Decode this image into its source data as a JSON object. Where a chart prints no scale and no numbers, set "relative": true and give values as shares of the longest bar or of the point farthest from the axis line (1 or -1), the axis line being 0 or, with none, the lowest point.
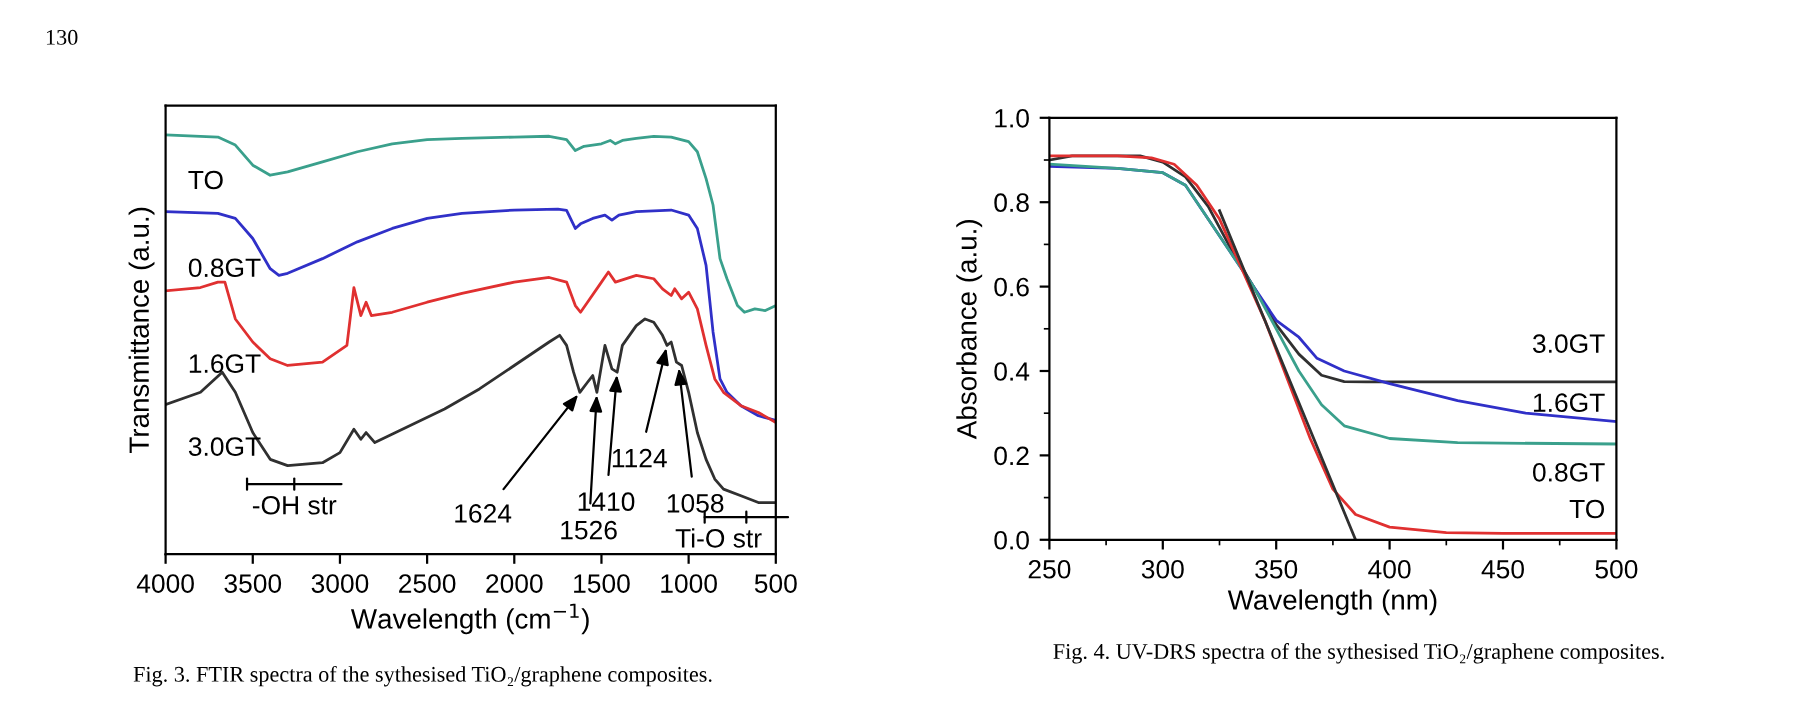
{
  "chart_data": [
    {
      "type": "line",
      "relative": true,
      "tick_labels": "x",
      "xlabel": "Wavelength (cm$^{−1}$)",
      "ylabel": "Transmittance (a.u.)",
      "xlim": [
        4000,
        500
      ],
      "xticks": [
        4000,
        3500,
        3000,
        2500,
        2000,
        1500,
        1000,
        500
      ],
      "grid": false,
      "legend": false,
      "series": [
        {
          "name": "TO",
          "color": "#3aa08c",
          "x": [
            4000,
            3700,
            3600,
            3500,
            3400,
            3300,
            3100,
            2900,
            2700,
            2500,
            2300,
            2000,
            1800,
            1700,
            1650,
            1600,
            1500,
            1450,
            1420,
            1380,
            1300,
            1200,
            1100,
            1000,
            950,
            900,
            860,
            820,
            780,
            720,
            680,
            620,
            560,
            500
          ],
          "values": [
            1.0,
            0.995,
            0.976,
            0.928,
            0.904,
            0.912,
            0.936,
            0.96,
            0.979,
            0.989,
            0.992,
            0.995,
            0.997,
            0.989,
            0.963,
            0.973,
            0.979,
            0.987,
            0.979,
            0.987,
            0.992,
            0.997,
            0.995,
            0.984,
            0.96,
            0.896,
            0.833,
            0.705,
            0.657,
            0.593,
            0.577,
            0.585,
            0.581,
            0.593
          ]
        },
        {
          "name": "0.8GT",
          "color": "#3030c8",
          "x": [
            4000,
            3700,
            3600,
            3500,
            3400,
            3350,
            3300,
            3100,
            2900,
            2700,
            2500,
            2300,
            2000,
            1750,
            1700,
            1650,
            1620,
            1550,
            1480,
            1440,
            1400,
            1300,
            1100,
            1000,
            950,
            900,
            860,
            820,
            780,
            700,
            600,
            500
          ],
          "values": [
            0.817,
            0.813,
            0.801,
            0.753,
            0.681,
            0.665,
            0.67,
            0.705,
            0.745,
            0.777,
            0.801,
            0.813,
            0.821,
            0.823,
            0.82,
            0.777,
            0.788,
            0.801,
            0.809,
            0.797,
            0.809,
            0.817,
            0.821,
            0.809,
            0.777,
            0.689,
            0.53,
            0.418,
            0.386,
            0.354,
            0.33,
            0.319
          ]
        },
        {
          "name": "1.6GT",
          "color": "#e03030",
          "x": [
            4000,
            3800,
            3700,
            3660,
            3600,
            3500,
            3400,
            3300,
            3100,
            2960,
            2920,
            2880,
            2850,
            2820,
            2700,
            2500,
            2300,
            2000,
            1800,
            1700,
            1650,
            1620,
            1580,
            1500,
            1460,
            1420,
            1300,
            1200,
            1150,
            1100,
            1080,
            1040,
            1000,
            950,
            900,
            850,
            800,
            700,
            600,
            500
          ],
          "values": [
            0.628,
            0.636,
            0.649,
            0.649,
            0.561,
            0.506,
            0.466,
            0.45,
            0.458,
            0.498,
            0.636,
            0.569,
            0.601,
            0.569,
            0.577,
            0.601,
            0.622,
            0.649,
            0.66,
            0.649,
            0.593,
            0.577,
            0.601,
            0.649,
            0.673,
            0.649,
            0.665,
            0.657,
            0.633,
            0.617,
            0.633,
            0.609,
            0.625,
            0.585,
            0.498,
            0.418,
            0.386,
            0.354,
            0.338,
            0.314
          ]
        },
        {
          "name": "3.0GT",
          "color": "#303030",
          "x": [
            4000,
            3800,
            3675,
            3600,
            3500,
            3400,
            3300,
            3100,
            3000,
            2920,
            2880,
            2850,
            2800,
            2600,
            2400,
            2200,
            2000,
            1800,
            1740,
            1700,
            1660,
            1624,
            1580,
            1550,
            1526,
            1480,
            1440,
            1410,
            1380,
            1300,
            1250,
            1200,
            1150,
            1124,
            1100,
            1070,
            1040,
            1000,
            950,
            900,
            850,
            800,
            700,
            600,
            500
          ],
          "values": [
            0.357,
            0.386,
            0.434,
            0.386,
            0.29,
            0.226,
            0.211,
            0.218,
            0.242,
            0.298,
            0.274,
            0.29,
            0.266,
            0.306,
            0.346,
            0.394,
            0.45,
            0.506,
            0.522,
            0.498,
            0.434,
            0.386,
            0.41,
            0.426,
            0.386,
            0.498,
            0.442,
            0.434,
            0.498,
            0.545,
            0.561,
            0.553,
            0.522,
            0.498,
            0.506,
            0.458,
            0.45,
            0.386,
            0.29,
            0.226,
            0.179,
            0.155,
            0.139,
            0.123,
            0.123
          ]
        }
      ],
      "annotations": [
        {
          "text": "1624",
          "x": 1624,
          "y": 0.386
        },
        {
          "text": "1526",
          "x": 1526,
          "y": 0.386
        },
        {
          "text": "1410",
          "x": 1410,
          "y": 0.434
        },
        {
          "text": "1124",
          "x": 1124,
          "y": 0.498
        },
        {
          "text": "1058",
          "x": 1058,
          "y": 0.45
        },
        "-OH str",
        "Ti-O str",
        "Fig. 3. FTIR spectra of the sythesised TiO₂/graphene composites.",
        "130"
      ]
    },
    {
      "type": "line",
      "xlabel": "Wavelength (nm)",
      "ylabel": "Absorbance (a.u.)",
      "xlim": [
        250,
        500
      ],
      "xticks": [
        250,
        300,
        350,
        400,
        450,
        500
      ],
      "ylim": [
        0,
        1.0
      ],
      "yticks": [
        {
          "value": 0,
          "label": "0.0"
        },
        0.2,
        0.4,
        0.6,
        0.8,
        {
          "value": 1.0,
          "label": "1.0"
        }
      ],
      "grid": false,
      "legend": false,
      "series": [
        {
          "name": "3.0GT",
          "color": "#303030",
          "x": [
            250,
            260,
            290,
            300,
            310,
            320,
            330,
            340,
            350,
            360,
            370,
            380,
            390,
            500
          ],
          "values": [
            0.9,
            0.91,
            0.91,
            0.895,
            0.86,
            0.79,
            0.69,
            0.6,
            0.51,
            0.44,
            0.39,
            0.375,
            0.374,
            0.374
          ]
        },
        {
          "name": "1.6GT",
          "color": "#3030c8",
          "x": [
            250,
            280,
            300,
            310,
            320,
            330,
            340,
            350,
            360,
            368,
            380,
            400,
            430,
            460,
            500
          ],
          "values": [
            0.885,
            0.88,
            0.87,
            0.84,
            0.76,
            0.68,
            0.6,
            0.52,
            0.48,
            0.43,
            0.4,
            0.37,
            0.33,
            0.3,
            0.28
          ]
        },
        {
          "name": "0.8GT",
          "color": "#3aa08c",
          "x": [
            250,
            280,
            300,
            310,
            320,
            330,
            340,
            350,
            360,
            370,
            380,
            400,
            430,
            500
          ],
          "values": [
            0.89,
            0.88,
            0.87,
            0.84,
            0.76,
            0.68,
            0.6,
            0.5,
            0.4,
            0.32,
            0.27,
            0.24,
            0.23,
            0.227
          ]
        },
        {
          "name": "TO",
          "color": "#e03030",
          "x": [
            250,
            280,
            295,
            305,
            315,
            325,
            335,
            345,
            355,
            365,
            375,
            385,
            400,
            425,
            450,
            500
          ],
          "values": [
            0.91,
            0.91,
            0.905,
            0.89,
            0.84,
            0.76,
            0.64,
            0.52,
            0.38,
            0.24,
            0.12,
            0.06,
            0.03,
            0.017,
            0.015,
            0.015
          ]
        },
        {
          "color": "#303030",
          "x": [
            325,
            385
          ],
          "values": [
            0.78,
            0
          ]
        }
      ],
      "annotations": [
        "Fig. 4. UV-DRS spectra of the sythesised TiO₂/graphene composites."
      ]
    }
  ]
}
